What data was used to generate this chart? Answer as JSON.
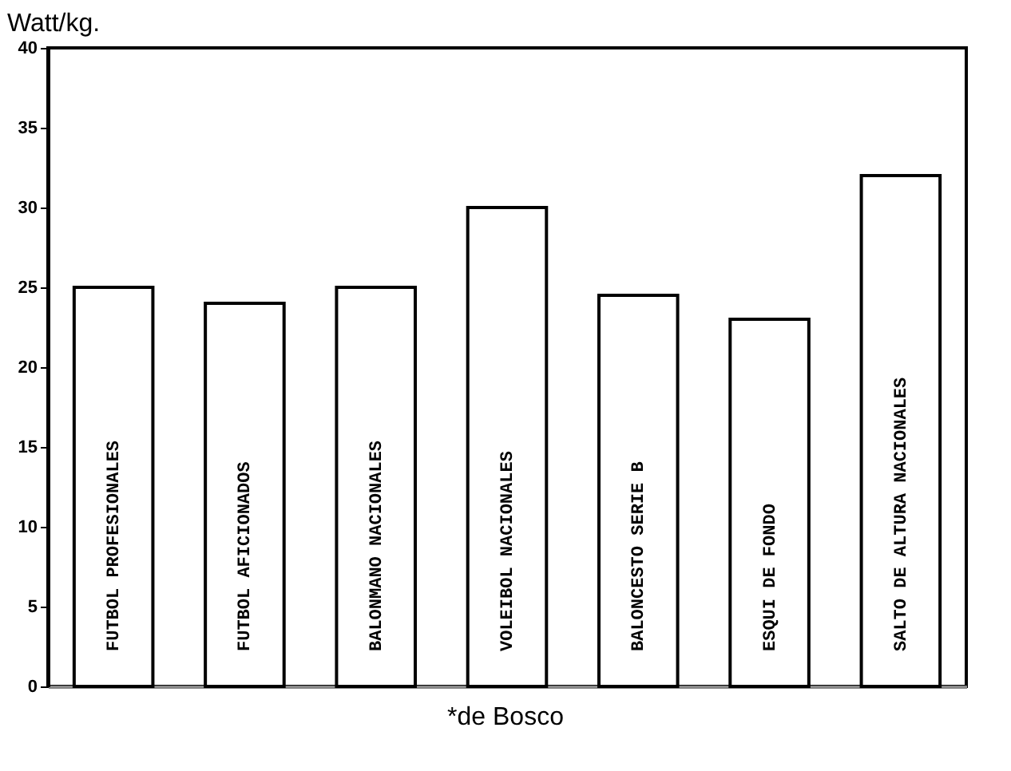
{
  "chart_data": {
    "type": "bar",
    "ylabel": "Watt/kg.",
    "categories": [
      "FUTBOL PROFESIONALES",
      "FUTBOL AFICIONADOS",
      "BALONMANO NACIONALES",
      "VOLEIBOL NACIONALES",
      "BALONCESTO SERIE B",
      "ESQUI DE FONDO",
      "SALTO DE ALTURA NACIONALES"
    ],
    "values": [
      25,
      24,
      25,
      30,
      24.5,
      23,
      32
    ],
    "color": "#ffffff",
    "ylim": [
      0,
      40
    ],
    "yticks": [
      0,
      5,
      10,
      15,
      20,
      25,
      30,
      35,
      40
    ],
    "annotations": [
      "*de Bosco"
    ]
  }
}
